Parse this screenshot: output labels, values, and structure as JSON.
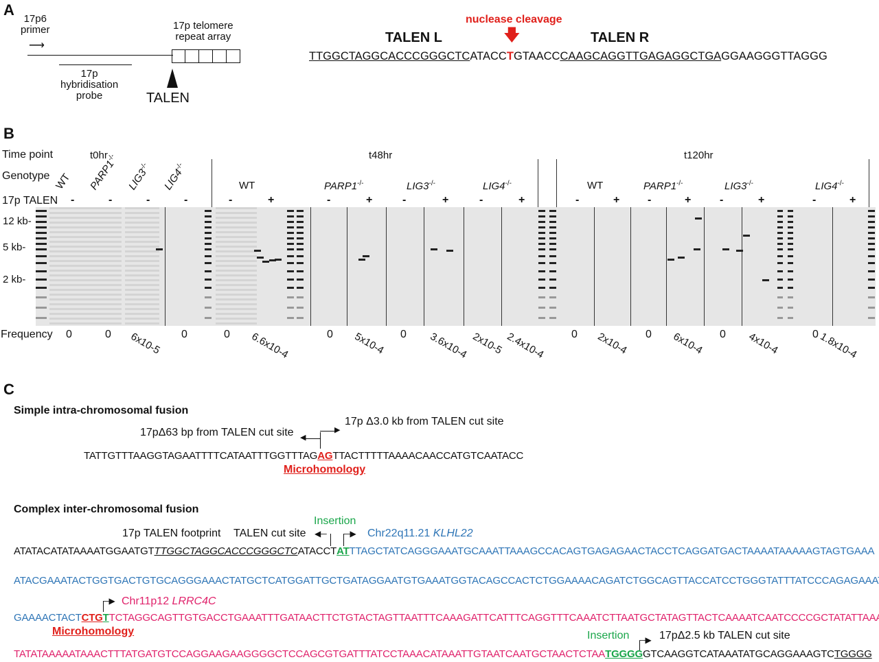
{
  "panel_a": {
    "label": "A",
    "primer": "17p6\nprimer",
    "probe": "17p\nhybridisation\nprobe",
    "telomere": "17p telomere\nrepeat array",
    "talen": "TALEN",
    "nuclease": "nuclease cleavage",
    "talen_l": "TALEN L",
    "talen_r": "TALEN R",
    "seq": {
      "left": "TTGGCTAGGCACCCGGGCTC",
      "mid1": "ATACC",
      "cut": "T",
      "mid2": "GTAACC",
      "right": "CAAGCAGGTTGAGAGGCTGA",
      "tail": "GGAAGGGTTAGGG"
    }
  },
  "panel_b": {
    "label": "B",
    "time_label": "Time point",
    "genotype_label": "Genotype",
    "talen_label": "17p TALEN",
    "frequency_label": "Frequency",
    "timepoints": [
      "t0hr",
      "t48hr",
      "t120hr"
    ],
    "t0_genotypes": [
      "WT",
      "PARP1",
      "LIG3",
      "LIG4"
    ],
    "genotypes": [
      "WT",
      "PARP1",
      "LIG3",
      "LIG4"
    ],
    "sup": "-/-",
    "minus": "-",
    "plus": "+",
    "markers": [
      "12 kb-",
      "5 kb-",
      "2 kb-"
    ],
    "frequencies": [
      "0",
      "0",
      "6x10-5",
      "0",
      "0",
      "6.6x10-4",
      "0",
      "5x10-4",
      "0",
      "3.6x10-4",
      "2x10-5",
      "2.4x10-4",
      "0",
      "2x10-4",
      "0",
      "6x10-4",
      "0",
      "4x10-4",
      "0",
      "1.8x10-4"
    ]
  },
  "panel_c": {
    "label": "C",
    "simple": {
      "title": "Simple intra-chromosomal fusion",
      "left_label": "17pΔ63 bp from TALEN cut site",
      "right_label": "17p Δ3.0 kb from TALEN cut site",
      "seq_a": "TATTGTTTAAGGTAGAATTTTCATAATTTGGTTTAG",
      "mh": "AG",
      "seq_b": "TTACTTTTTAAAACAACCATGTCAATACC",
      "mh_label": "Microhomology"
    },
    "complex": {
      "title": "Complex inter-chromosomal fusion",
      "insertion": "Insertion",
      "footprint": "17p TALEN footprint",
      "cutsite": "TALEN cut site",
      "chr22": "Chr22q11.21",
      "gene22": "KLHL22",
      "chr11": "Chr11p12",
      "gene11": "LRRC4C",
      "final_label": "17pΔ2.5 kb TALEN cut site",
      "mh_label": "Microhomology",
      "l1a": "ATATACATATAAAATGGAATGT",
      "l1fp": "TTGGCTAGGCACCCGGGCTC",
      "l1b": "ATACCT",
      "l1ins": "AT",
      "l1c": "TTAGCTATCAGGGAAATGCAAATTAAAGCCACAGTGAGAGAACTACCTCAGGATGACTAAAATAAAAAGTAGTGAAA",
      "l2": "ATACGAAATACTGGTGACTGTGCAGGGAAACTATGCTCATGGATTGCTGATAGGAATGTGAAATGGTACAGCCACTCTGGAAAACAGATCTGGCAGTTACCATCCTGGGTATTTATCCCAGAGAAAT",
      "l3a": "GAAAACTACT",
      "l3mh": "CTG",
      "l3t": "T",
      "l3b": "TCTAGGCAGTTGTGACCTGAAATTTGATAACTTCTGTACTAGTTAATTTCAAAGATTCATTTCAGGTTTCAAATCTTAATGCTATAGTTACTCAAAATCAATCCCCGCTATATTAAA",
      "l4a": "TATATAAAAATAAACTTTATGATGTCCAGGAAGAAGGGGCTCCAGCGTGATTTATCCTAAACATAAATTGTAATCAATGCTAACTCTAA",
      "l4ins": "TGGGG",
      "l4b": "GTCAAGGTCATAAATATGCAGGAAAGTC",
      "l4c": "TGGGG"
    }
  }
}
